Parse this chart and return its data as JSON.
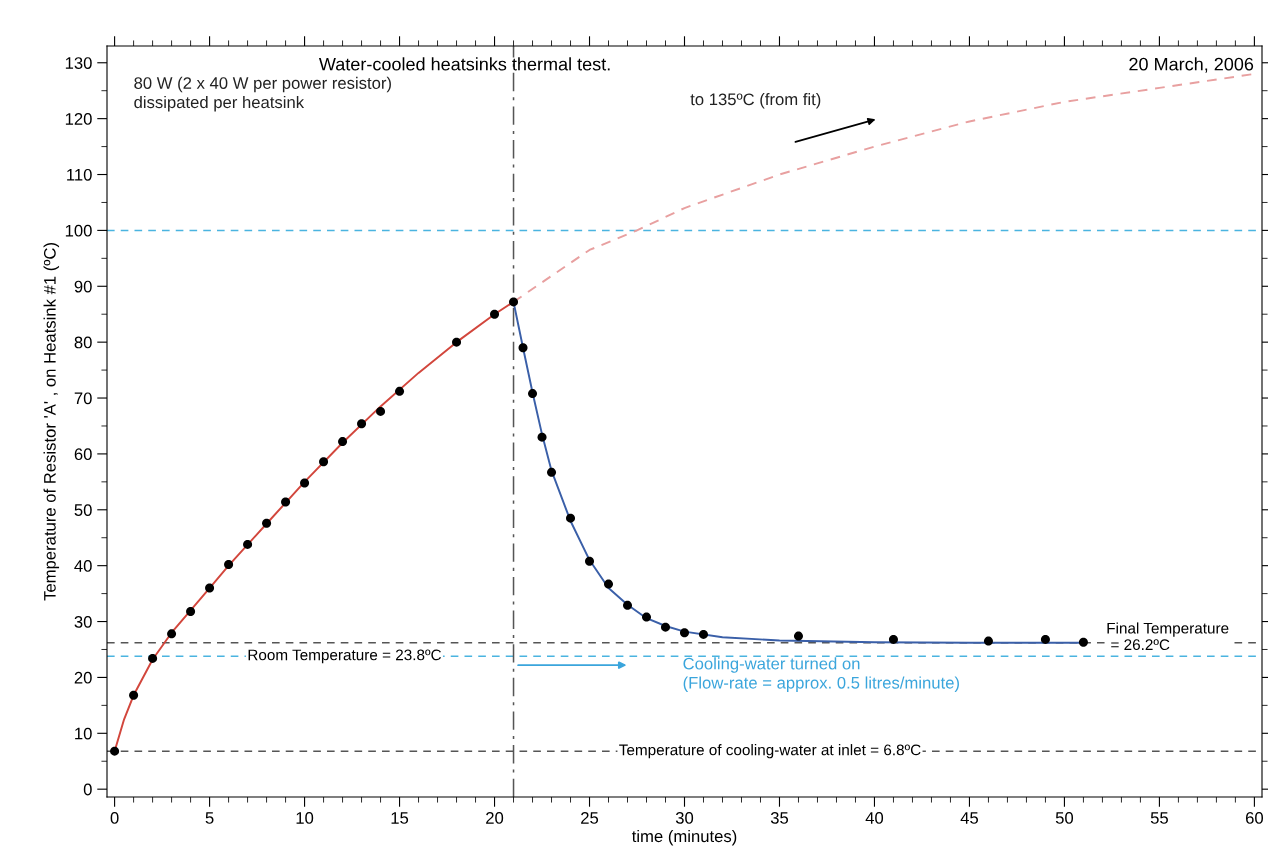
{
  "chart_data": {
    "type": "scatter",
    "title": "Water-cooled heatsinks thermal test.",
    "subtitle": "20 March, 2006",
    "xlabel": "time (minutes)",
    "ylabel": "Temperature of Resistor 'A' , on Heatsink #1 (ºC)",
    "xlim": [
      -0.4,
      60.4
    ],
    "ylim": [
      -1.4,
      133
    ],
    "xticks": [
      0,
      5,
      10,
      15,
      20,
      25,
      30,
      35,
      40,
      45,
      50,
      55,
      60
    ],
    "yticks": [
      0,
      10,
      20,
      30,
      40,
      50,
      60,
      70,
      80,
      90,
      100,
      110,
      120,
      130
    ],
    "grid": false,
    "marker": "circle",
    "series": [
      {
        "type": "line",
        "color": "#d2463c",
        "line_style": "solid",
        "marker": "none",
        "x": [
          0,
          0.5,
          1,
          2,
          3,
          4,
          5,
          6,
          8,
          10,
          12,
          14,
          16,
          18,
          20,
          21
        ],
        "values": [
          6.8,
          12.5,
          16.8,
          23.2,
          28,
          32,
          36,
          40,
          47.5,
          55,
          62,
          68.5,
          74.5,
          80,
          85,
          87.2
        ]
      },
      {
        "type": "line",
        "color": "#e8a0a0",
        "line_style": "dashed",
        "marker": "none",
        "x": [
          21,
          25,
          27.5,
          30,
          35,
          40,
          45,
          50,
          55,
          60
        ],
        "values": [
          87.2,
          96.5,
          100,
          104,
          110,
          115,
          119.5,
          123,
          125.5,
          128
        ]
      },
      {
        "type": "line",
        "color": "#3a5fa8",
        "line_style": "solid",
        "marker": "none",
        "x": [
          21,
          21.5,
          22,
          22.5,
          23,
          24,
          25,
          26,
          27,
          28,
          29,
          30,
          32,
          35,
          40,
          45,
          51
        ],
        "values": [
          87.2,
          79,
          71,
          63.5,
          57,
          48,
          41,
          36,
          33,
          30.6,
          29.2,
          28.2,
          27.2,
          26.6,
          26.3,
          26.2,
          26.2
        ]
      },
      {
        "color": "#000000",
        "x": [
          0,
          1,
          2,
          3,
          4,
          5,
          6,
          7,
          8,
          9,
          10,
          11,
          12,
          13,
          14,
          15,
          18,
          20,
          21
        ],
        "values": [
          6.8,
          16.8,
          23.4,
          27.8,
          31.8,
          36.0,
          40.2,
          43.8,
          47.6,
          51.4,
          54.8,
          58.6,
          62.2,
          65.4,
          67.6,
          71.2,
          80,
          85,
          87.2
        ]
      },
      {
        "color": "#000000",
        "x": [
          21.5,
          22,
          22.5,
          23,
          24,
          25,
          26,
          27,
          28,
          29,
          30,
          31,
          36,
          41,
          46,
          49,
          51
        ],
        "values": [
          79,
          70.8,
          63,
          56.7,
          48.5,
          40.8,
          36.7,
          32.9,
          30.8,
          29,
          28,
          27.7,
          27.4,
          26.8,
          26.5,
          26.8,
          26.3
        ]
      }
    ],
    "ref_lines": [
      {
        "axis": "y",
        "value": 100,
        "color": "#4ab4e0",
        "line_style": "dashed"
      },
      {
        "axis": "y",
        "value": 26.2,
        "label": "Final Temperature\n = 26.2ºC",
        "color": "#555555",
        "line_style": "dashed"
      },
      {
        "axis": "y",
        "value": 23.8,
        "label": "Room Temperature = 23.8ºC",
        "color": "#4ab4e0",
        "line_style": "dashed"
      },
      {
        "axis": "y",
        "value": 6.8,
        "label": "Temperature of cooling-water at inlet = 6.8ºC",
        "color": "#555555",
        "line_style": "dashed"
      },
      {
        "axis": "x",
        "value": 21,
        "color": "#555555",
        "line_style": "dashdot"
      }
    ],
    "annotations": [
      "80 W (2 x 40 W per power resistor)\ndissipated per heatsink",
      "to 135ºC (from fit)",
      "Cooling-water turned on\n(Flow-rate = approx. 0.5 litres/minute)"
    ]
  }
}
